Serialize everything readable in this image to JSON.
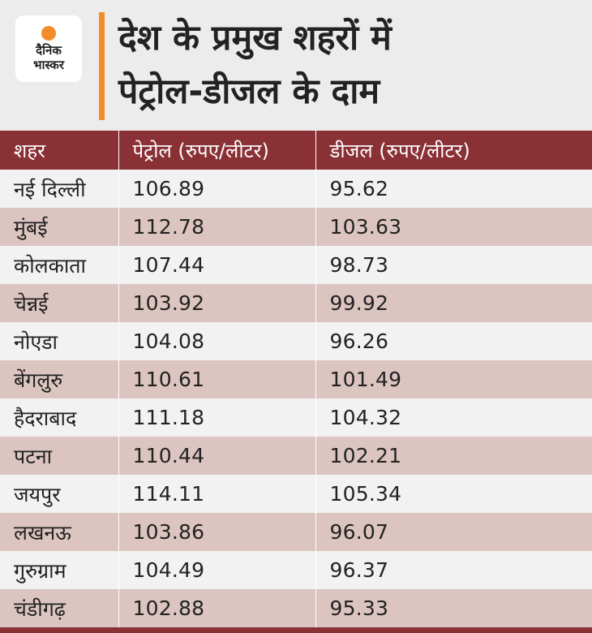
{
  "logo": {
    "text": "दैनिक\nभास्कर",
    "sun_color": "#f28c28"
  },
  "title": "देश के प्रमुख शहरों में\nपेट्रोल-डीजल के दाम",
  "accent_color": "#f28c28",
  "header_color": "#8a3136",
  "table": {
    "headers": [
      "शहर",
      "पेट्रोल (रुपए/लीटर)",
      "डीजल (रुपए/लीटर)"
    ],
    "rows": [
      [
        "नई दिल्ली",
        "106.89",
        "95.62"
      ],
      [
        "मुंबई",
        "112.78",
        "103.63"
      ],
      [
        "कोलकाता",
        "107.44",
        "98.73"
      ],
      [
        "चेन्नई",
        "103.92",
        "99.92"
      ],
      [
        "नोएडा",
        "104.08",
        "96.26"
      ],
      [
        "बेंगलुरु",
        "110.61",
        "101.49"
      ],
      [
        "हैदराबाद",
        "111.18",
        "104.32"
      ],
      [
        "पटना",
        "110.44",
        "102.21"
      ],
      [
        "जयपुर",
        "114.11",
        "105.34"
      ],
      [
        "लखनऊ",
        "103.86",
        "96.07"
      ],
      [
        "गुरुग्राम",
        "104.49",
        "96.37"
      ],
      [
        "चंडीगढ़",
        "102.88",
        "95.33"
      ]
    ]
  }
}
